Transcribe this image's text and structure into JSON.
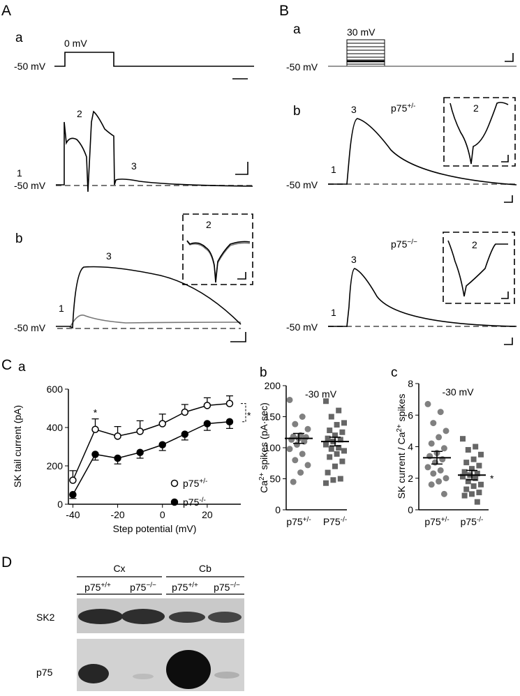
{
  "panel_labels": {
    "A": "A",
    "B": "B",
    "C": "C",
    "D": "D",
    "Aa": "a",
    "Ab": "b",
    "Ba": "a",
    "Bb": "b",
    "Ca": "a",
    "Cb": "b",
    "Cc": "c"
  },
  "traces": {
    "Aa_step": "0 mV",
    "Aa_hold": "-50 mV",
    "A_trace_hold": "-50 mV",
    "A_1": "1",
    "A_2": "2",
    "A_3": "3",
    "Ab_hold": "-50 mV",
    "Ab_1": "1",
    "Ab_3": "3",
    "Ab_inset_2": "2",
    "Ba_step": "30 mV",
    "Ba_hold": "-50 mV",
    "Bb_upper_genotype": [
      "p75",
      "+/-"
    ],
    "Bb_upper_hold": "-50 mV",
    "Bb_upper_1": "1",
    "Bb_upper_3": "3",
    "Bb_upper_inset_2": "2",
    "Bb_lower_genotype": [
      "p75",
      "−/−"
    ],
    "Bb_lower_hold": "-50 mV",
    "Bb_lower_1": "1",
    "Bb_lower_3": "3",
    "Bb_lower_inset_2": "2"
  },
  "chart_data": [
    {
      "type": "line",
      "ylabel": "SK tail current (pA)",
      "xlabel": "Step potential (mV)",
      "x": [
        -40,
        -30,
        -20,
        -10,
        0,
        10,
        20,
        30
      ],
      "series": [
        {
          "name": [
            "p75",
            "+/-"
          ],
          "marker": "open",
          "color": "#000000",
          "values": [
            125,
            390,
            355,
            380,
            420,
            480,
            515,
            525
          ],
          "error": [
            50,
            55,
            50,
            55,
            50,
            40,
            40,
            40
          ]
        },
        {
          "name": [
            "p75",
            "-/-"
          ],
          "marker": "filled",
          "color": "#000000",
          "values": [
            50,
            260,
            240,
            270,
            310,
            365,
            420,
            430
          ],
          "error": [
            20,
            30,
            30,
            30,
            30,
            30,
            35,
            35
          ]
        }
      ],
      "xlim": [
        -42,
        35
      ],
      "xticks": [
        -40,
        -20,
        0,
        20
      ],
      "ylim": [
        0,
        600
      ],
      "yticks": [
        0,
        200,
        400,
        600
      ],
      "annotations": [
        "*",
        "*"
      ]
    },
    {
      "type": "strip",
      "title": "-30 mV",
      "ylabel": [
        "Ca",
        "2+",
        " spikes  (pA·sec)"
      ],
      "categories": [
        [
          "p75",
          "+/-"
        ],
        [
          "P75",
          "-/-"
        ]
      ],
      "series": [
        {
          "marker": "circle",
          "color": "#808080",
          "values": [
            177,
            150,
            138,
            130,
            120,
            118,
            117,
            115,
            113,
            110,
            105,
            98,
            90,
            80,
            72,
            60,
            45
          ]
        },
        {
          "marker": "square",
          "color": "#666666",
          "values": [
            175,
            160,
            150,
            140,
            137,
            128,
            125,
            120,
            115,
            113,
            110,
            105,
            100,
            98,
            95,
            90,
            85,
            78,
            70,
            60,
            50,
            48,
            43
          ]
        }
      ],
      "means": [
        115,
        110
      ],
      "sems": [
        8,
        7
      ],
      "ylim": [
        0,
        200
      ],
      "yticks": [
        0,
        50,
        100,
        150,
        200
      ]
    },
    {
      "type": "strip",
      "title": "-30 mV",
      "ylabel": [
        "SK current / Ca",
        "2+",
        " spikes"
      ],
      "categories": [
        [
          "p75",
          "+/-"
        ],
        [
          "p75",
          "-/-"
        ]
      ],
      "series": [
        {
          "marker": "circle",
          "color": "#808080",
          "values": [
            6.7,
            6.2,
            5.5,
            5.0,
            4.6,
            4.2,
            3.9,
            3.6,
            3.4,
            3.2,
            3.0,
            2.7,
            2.5,
            2.3,
            2.0,
            1.8,
            1.6,
            1.0
          ]
        },
        {
          "marker": "square",
          "color": "#666666",
          "values": [
            4.5,
            4.0,
            3.8,
            3.5,
            3.2,
            3.0,
            2.8,
            2.6,
            2.4,
            2.3,
            2.2,
            2.1,
            2.0,
            1.8,
            1.6,
            1.5,
            1.3,
            1.1,
            1.0,
            0.9,
            0.5
          ]
        }
      ],
      "means": [
        3.3,
        2.2
      ],
      "sems": [
        0.4,
        0.3
      ],
      "ylim": [
        0,
        8
      ],
      "yticks": [
        0,
        2,
        4,
        6,
        8
      ],
      "annotations": [
        "*"
      ]
    }
  ],
  "blot": {
    "groups": [
      "Cx",
      "Cb"
    ],
    "lanes": [
      [
        "p75",
        "+/+"
      ],
      [
        "p75",
        "−/−"
      ],
      [
        "p75",
        "+/+"
      ],
      [
        "p75",
        "−/−"
      ]
    ],
    "rows": [
      "SK2",
      "p75"
    ]
  }
}
